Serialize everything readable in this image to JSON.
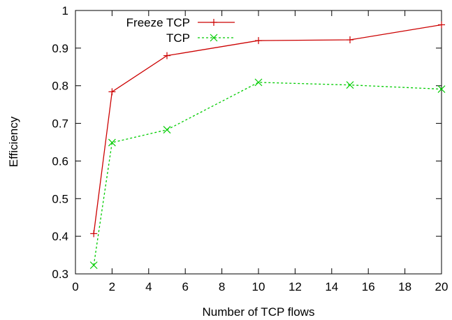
{
  "chart_data": {
    "type": "line",
    "xlabel": "Number of TCP flows",
    "ylabel": "Efficiency",
    "xlim": [
      0,
      20
    ],
    "ylim": [
      0.3,
      1
    ],
    "xticks": [
      0,
      2,
      4,
      6,
      8,
      10,
      12,
      14,
      16,
      18,
      20
    ],
    "yticks": [
      0.3,
      0.4,
      0.5,
      0.6,
      0.7,
      0.8,
      0.9,
      1
    ],
    "ytick_labels": [
      "0.3",
      "0.4",
      "0.5",
      "0.6",
      "0.7",
      "0.8",
      "0.9",
      "1"
    ],
    "grid": false,
    "legend_position": "top-left",
    "series": [
      {
        "name": "Freeze TCP",
        "color": "#cc0000",
        "marker": "plus",
        "line": "solid",
        "x": [
          1,
          2,
          5,
          10,
          15,
          20
        ],
        "y": [
          0.407,
          0.784,
          0.88,
          0.92,
          0.922,
          0.962
        ]
      },
      {
        "name": "TCP",
        "color": "#00cc00",
        "marker": "cross",
        "line": "dashed",
        "x": [
          1,
          2,
          5,
          10,
          15,
          20
        ],
        "y": [
          0.323,
          0.649,
          0.683,
          0.809,
          0.802,
          0.791
        ]
      }
    ]
  }
}
